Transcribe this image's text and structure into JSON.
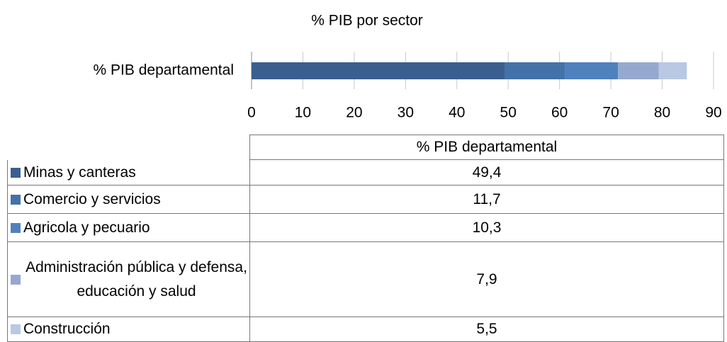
{
  "chart_data": {
    "type": "stacked-bar-horizontal",
    "title": "% PIB por sector",
    "categories": [
      "% PIB departamental"
    ],
    "series": [
      {
        "name": "Minas y canteras",
        "color": "#3a5f8f",
        "values": [
          49.4
        ],
        "value_labels": [
          "49,4"
        ]
      },
      {
        "name": "Comercio y servicios",
        "color": "#4472a8",
        "values": [
          11.7
        ],
        "value_labels": [
          "11,7"
        ]
      },
      {
        "name": "Agricola y pecuario",
        "color": "#4f81bd",
        "values": [
          10.3
        ],
        "value_labels": [
          "10,3"
        ]
      },
      {
        "name": "Administración pública y defensa, educación y salud",
        "color": "#95a9cf",
        "values": [
          7.9
        ],
        "value_labels": [
          "7,9"
        ]
      },
      {
        "name": "Construcción",
        "color": "#b9c8e3",
        "values": [
          5.5
        ],
        "value_labels": [
          "5,5"
        ]
      }
    ],
    "xlim": [
      0,
      90
    ],
    "xticks": [
      0,
      10,
      20,
      30,
      40,
      50,
      60,
      70,
      80,
      90
    ],
    "grid": true
  }
}
